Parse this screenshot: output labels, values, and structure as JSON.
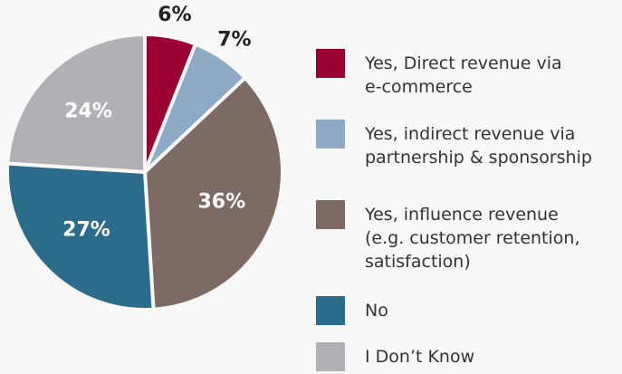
{
  "chart_data": {
    "type": "pie",
    "categories": [
      "Yes, Direct revenue via\ne-commerce",
      "Yes, indirect revenue via\npartnership & sponsorship",
      "Yes, influence revenue\n(e.g. customer retention,\nsatisfaction)",
      "No",
      "I Don’t Know"
    ],
    "values": [
      6,
      7,
      36,
      27,
      24
    ],
    "value_labels": [
      "6%",
      "7%",
      "36%",
      "27%",
      "24%"
    ],
    "colors": [
      "#9b0032",
      "#8eaac4",
      "#7d6a64",
      "#2b6c8d",
      "#b1b1b5"
    ],
    "legend": "right"
  }
}
